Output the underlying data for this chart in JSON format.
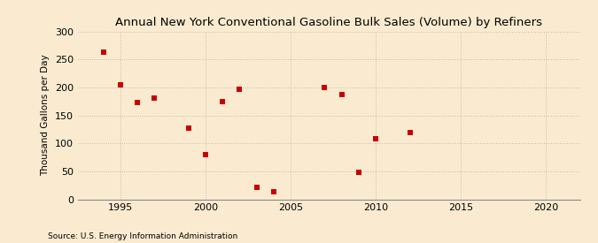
{
  "title": "Annual New York Conventional Gasoline Bulk Sales (Volume) by Refiners",
  "ylabel": "Thousand Gallons per Day",
  "source": "Source: U.S. Energy Information Administration",
  "background_color": "#faebd0",
  "plot_bg_color": "#faebd0",
  "data_points": [
    [
      1994,
      263
    ],
    [
      1995,
      204
    ],
    [
      1996,
      173
    ],
    [
      1997,
      181
    ],
    [
      1999,
      127
    ],
    [
      2000,
      80
    ],
    [
      2001,
      174
    ],
    [
      2002,
      197
    ],
    [
      2003,
      22
    ],
    [
      2004,
      14
    ],
    [
      2007,
      200
    ],
    [
      2008,
      187
    ],
    [
      2009,
      49
    ],
    [
      2010,
      108
    ],
    [
      2012,
      119
    ]
  ],
  "marker_color": "#cc0000",
  "marker_size": 18,
  "xlim": [
    1992.5,
    2022
  ],
  "ylim": [
    0,
    300
  ],
  "xticks": [
    1995,
    2000,
    2005,
    2010,
    2015,
    2020
  ],
  "yticks": [
    0,
    50,
    100,
    150,
    200,
    250,
    300
  ],
  "grid_color": "#bbbbbb",
  "grid_style": ":",
  "vgrid_positions": [
    1995,
    2000,
    2005,
    2010,
    2015,
    2020
  ],
  "title_fontsize": 9.5,
  "ylabel_fontsize": 7.5,
  "tick_fontsize": 8,
  "source_fontsize": 6.5
}
